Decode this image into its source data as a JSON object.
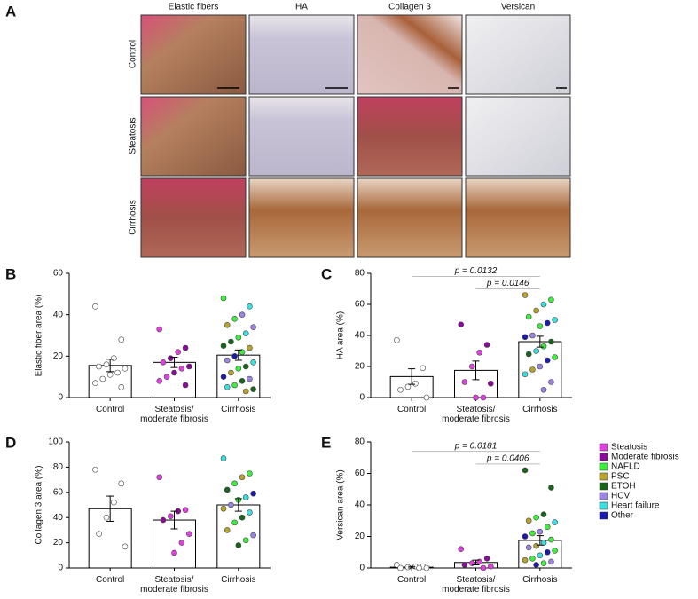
{
  "panel_a": {
    "label": "A",
    "columns": [
      "Elastic fibers",
      "HA",
      "Collagen 3",
      "Versican"
    ],
    "rows": [
      "Control",
      "Steatosis",
      "Cirrhosis"
    ]
  },
  "legend": {
    "entries": [
      {
        "name": "Steatosis",
        "color": "#e040e0"
      },
      {
        "name": "Moderate fibrosis",
        "color": "#8a0a9a"
      },
      {
        "name": "NAFLD",
        "color": "#3ef03e"
      },
      {
        "name": "PSC",
        "color": "#b8a42a"
      },
      {
        "name": "ETOH",
        "color": "#16661a"
      },
      {
        "name": "HCV",
        "color": "#9c84e4"
      },
      {
        "name": "Heart failure",
        "color": "#3ae0e0"
      },
      {
        "name": "Other",
        "color": "#1a1aae"
      }
    ]
  },
  "chart_data": [
    {
      "type": "bar",
      "panel": "B",
      "ylabel": "Elastic fiber area (%)",
      "categories": [
        "Control",
        "Steatosis/\nmoderate fibrosis",
        "Cirrhosis"
      ],
      "values": [
        15.5,
        17,
        20.5
      ],
      "errors": [
        3,
        2.5,
        2.5
      ],
      "ylim": [
        0,
        60
      ],
      "yticks": [
        0,
        20,
        40,
        60
      ],
      "annotations": [],
      "dots": [
        [
          {
            "value": 44
          },
          {
            "value": 28
          },
          {
            "value": 19
          },
          {
            "value": 16
          },
          {
            "value": 15
          },
          {
            "value": 14
          },
          {
            "value": 12
          },
          {
            "value": 11
          },
          {
            "value": 9
          },
          {
            "value": 7
          },
          {
            "value": 5
          }
        ],
        [
          {
            "value": 33,
            "group": "Steatosis"
          },
          {
            "value": 24,
            "group": "Moderate fibrosis"
          },
          {
            "value": 22,
            "group": "Steatosis"
          },
          {
            "value": 19,
            "group": "Moderate fibrosis"
          },
          {
            "value": 17,
            "group": "Steatosis"
          },
          {
            "value": 15,
            "group": "Moderate fibrosis"
          },
          {
            "value": 14,
            "group": "Steatosis"
          },
          {
            "value": 12,
            "group": "Moderate fibrosis"
          },
          {
            "value": 10,
            "group": "Steatosis"
          },
          {
            "value": 8,
            "group": "Steatosis"
          },
          {
            "value": 6,
            "group": "Moderate fibrosis"
          }
        ],
        [
          {
            "value": 48,
            "group": "NAFLD"
          },
          {
            "value": 44,
            "group": "Heart failure"
          },
          {
            "value": 40,
            "group": "HCV"
          },
          {
            "value": 38,
            "group": "NAFLD"
          },
          {
            "value": 35,
            "group": "PSC"
          },
          {
            "value": 34,
            "group": "HCV"
          },
          {
            "value": 31,
            "group": "Heart failure"
          },
          {
            "value": 29,
            "group": "NAFLD"
          },
          {
            "value": 27,
            "group": "ETOH"
          },
          {
            "value": 25,
            "group": "ETOH"
          },
          {
            "value": 24,
            "group": "PSC"
          },
          {
            "value": 22,
            "group": "NAFLD"
          },
          {
            "value": 20,
            "group": "Other"
          },
          {
            "value": 18,
            "group": "HCV"
          },
          {
            "value": 17,
            "group": "Heart failure"
          },
          {
            "value": 15,
            "group": "ETOH"
          },
          {
            "value": 14,
            "group": "NAFLD"
          },
          {
            "value": 12,
            "group": "PSC"
          },
          {
            "value": 10,
            "group": "Other"
          },
          {
            "value": 9,
            "group": "HCV"
          },
          {
            "value": 8,
            "group": "ETOH"
          },
          {
            "value": 6,
            "group": "NAFLD"
          },
          {
            "value": 5,
            "group": "Heart failure"
          },
          {
            "value": 4,
            "group": "ETOH"
          },
          {
            "value": 3,
            "group": "PSC"
          }
        ]
      ]
    },
    {
      "type": "bar",
      "panel": "C",
      "ylabel": "HA area (%)",
      "categories": [
        "Control",
        "Steatosis/\nmoderate fibrosis",
        "Cirrhosis"
      ],
      "values": [
        13.5,
        17.5,
        36
      ],
      "errors": [
        5,
        6,
        3.5
      ],
      "ylim": [
        0,
        80
      ],
      "yticks": [
        0,
        20,
        40,
        60,
        80
      ],
      "annotations": [
        {
          "text": "p = 0.0132",
          "from": 0,
          "to": 2,
          "y": 78
        },
        {
          "text": "p = 0.0146",
          "from": 1,
          "to": 2,
          "y": 70
        }
      ],
      "dots": [
        [
          {
            "value": 37
          },
          {
            "value": 19
          },
          {
            "value": 9
          },
          {
            "value": 7
          },
          {
            "value": 5
          },
          {
            "value": 0
          }
        ],
        [
          {
            "value": 47,
            "group": "Moderate fibrosis"
          },
          {
            "value": 34,
            "group": "Moderate fibrosis"
          },
          {
            "value": 29,
            "group": "Steatosis"
          },
          {
            "value": 20,
            "group": "Steatosis"
          },
          {
            "value": 10,
            "group": "Steatosis"
          },
          {
            "value": 9,
            "group": "Moderate fibrosis"
          },
          {
            "value": 0,
            "group": "Steatosis"
          },
          {
            "value": 0,
            "group": "Steatosis"
          }
        ],
        [
          {
            "value": 66,
            "group": "PSC"
          },
          {
            "value": 63,
            "group": "NAFLD"
          },
          {
            "value": 60,
            "group": "Heart failure"
          },
          {
            "value": 56,
            "group": "PSC"
          },
          {
            "value": 52,
            "group": "NAFLD"
          },
          {
            "value": 50,
            "group": "Heart failure"
          },
          {
            "value": 48,
            "group": "Other"
          },
          {
            "value": 46,
            "group": "NAFLD"
          },
          {
            "value": 40,
            "group": "HCV"
          },
          {
            "value": 39,
            "group": "Other"
          },
          {
            "value": 36,
            "group": "ETOH"
          },
          {
            "value": 33,
            "group": "NAFLD"
          },
          {
            "value": 30,
            "group": "Heart failure"
          },
          {
            "value": 28,
            "group": "ETOH"
          },
          {
            "value": 26,
            "group": "NAFLD"
          },
          {
            "value": 24,
            "group": "Other"
          },
          {
            "value": 20,
            "group": "HCV"
          },
          {
            "value": 18,
            "group": "PSC"
          },
          {
            "value": 15,
            "group": "Heart failure"
          },
          {
            "value": 10,
            "group": "HCV"
          },
          {
            "value": 5,
            "group": "HCV"
          }
        ]
      ]
    },
    {
      "type": "bar",
      "panel": "D",
      "ylabel": "Collagen 3 area (%)",
      "categories": [
        "Control",
        "Steatosis/\nmoderate fibrosis",
        "Cirrhosis"
      ],
      "values": [
        47,
        38,
        50
      ],
      "errors": [
        10,
        7,
        5
      ],
      "ylim": [
        0,
        100
      ],
      "yticks": [
        0,
        20,
        40,
        60,
        80,
        100
      ],
      "annotations": [],
      "dots": [
        [
          {
            "value": 78
          },
          {
            "value": 67
          },
          {
            "value": 52
          },
          {
            "value": 40
          },
          {
            "value": 27
          },
          {
            "value": 17
          }
        ],
        [
          {
            "value": 72,
            "group": "Steatosis"
          },
          {
            "value": 46,
            "group": "Steatosis"
          },
          {
            "value": 45,
            "group": "Moderate fibrosis"
          },
          {
            "value": 41,
            "group": "Steatosis"
          },
          {
            "value": 38,
            "group": "Moderate fibrosis"
          },
          {
            "value": 27,
            "group": "Steatosis"
          },
          {
            "value": 20,
            "group": "Steatosis"
          },
          {
            "value": 12,
            "group": "Steatosis"
          }
        ],
        [
          {
            "value": 87,
            "group": "Heart failure"
          },
          {
            "value": 75,
            "group": "NAFLD"
          },
          {
            "value": 72,
            "group": "PSC"
          },
          {
            "value": 67,
            "group": "NAFLD"
          },
          {
            "value": 62,
            "group": "ETOH"
          },
          {
            "value": 59,
            "group": "Other"
          },
          {
            "value": 56,
            "group": "Heart failure"
          },
          {
            "value": 54,
            "group": "NAFLD"
          },
          {
            "value": 50,
            "group": "HCV"
          },
          {
            "value": 47,
            "group": "PSC"
          },
          {
            "value": 44,
            "group": "Heart failure"
          },
          {
            "value": 40,
            "group": "ETOH"
          },
          {
            "value": 36,
            "group": "NAFLD"
          },
          {
            "value": 30,
            "group": "PSC"
          },
          {
            "value": 26,
            "group": "HCV"
          },
          {
            "value": 22,
            "group": "NAFLD"
          },
          {
            "value": 18,
            "group": "ETOH"
          }
        ]
      ]
    },
    {
      "type": "bar",
      "panel": "E",
      "ylabel": "Versican area (%)",
      "categories": [
        "Control",
        "Steatosis/\nmoderate fibrosis",
        "Cirrhosis"
      ],
      "values": [
        0.5,
        3.5,
        17.5
      ],
      "errors": [
        0.5,
        1.5,
        3
      ],
      "ylim": [
        0,
        80
      ],
      "yticks": [
        0,
        20,
        40,
        60,
        80
      ],
      "annotations": [
        {
          "text": "p = 0.0181",
          "from": 0,
          "to": 2,
          "y": 74
        },
        {
          "text": "p = 0.0406",
          "from": 1,
          "to": 2,
          "y": 66
        }
      ],
      "dots": [
        [
          {
            "value": 2
          },
          {
            "value": 1
          },
          {
            "value": 1
          },
          {
            "value": 0.5
          },
          {
            "value": 0
          },
          {
            "value": 0
          },
          {
            "value": 0
          }
        ],
        [
          {
            "value": 12,
            "group": "Steatosis"
          },
          {
            "value": 6,
            "group": "Moderate fibrosis"
          },
          {
            "value": 4,
            "group": "Steatosis"
          },
          {
            "value": 3,
            "group": "Steatosis"
          },
          {
            "value": 2,
            "group": "Moderate fibrosis"
          },
          {
            "value": 1,
            "group": "Steatosis"
          },
          {
            "value": 0,
            "group": "Steatosis"
          }
        ],
        [
          {
            "value": 62,
            "group": "ETOH"
          },
          {
            "value": 51,
            "group": "ETOH"
          },
          {
            "value": 34,
            "group": "ETOH"
          },
          {
            "value": 32,
            "group": "NAFLD"
          },
          {
            "value": 30,
            "group": "PSC"
          },
          {
            "value": 29,
            "group": "Heart failure"
          },
          {
            "value": 26,
            "group": "NAFLD"
          },
          {
            "value": 23,
            "group": "HCV"
          },
          {
            "value": 22,
            "group": "NAFLD"
          },
          {
            "value": 20,
            "group": "Other"
          },
          {
            "value": 18,
            "group": "NAFLD"
          },
          {
            "value": 16,
            "group": "Heart failure"
          },
          {
            "value": 14,
            "group": "PSC"
          },
          {
            "value": 13,
            "group": "HCV"
          },
          {
            "value": 11,
            "group": "NAFLD"
          },
          {
            "value": 10,
            "group": "Other"
          },
          {
            "value": 8,
            "group": "Heart failure"
          },
          {
            "value": 6,
            "group": "NAFLD"
          },
          {
            "value": 5,
            "group": "PSC"
          },
          {
            "value": 4,
            "group": "HCV"
          },
          {
            "value": 3,
            "group": "NAFLD"
          },
          {
            "value": 2,
            "group": "Other"
          }
        ]
      ]
    }
  ]
}
